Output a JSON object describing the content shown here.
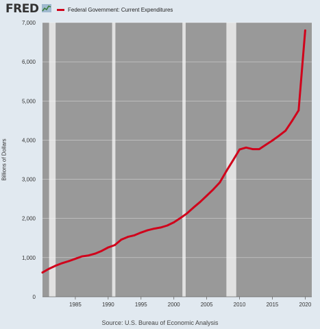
{
  "header": {
    "logo_text": "FRED",
    "logo_icon": "chart-line-icon"
  },
  "colors": {
    "page_bg": "#e1e9f0",
    "plot_bg": "#e1e1e1",
    "recession": "#999999",
    "line": "#d0021b",
    "grid": "#ffffff"
  },
  "footer": {
    "source": "Source: U.S. Bureau of Economic Analysis"
  },
  "chart_data": {
    "type": "line",
    "title": "",
    "xlabel": "",
    "ylabel": "Billions of Dollars",
    "xlim": [
      1980,
      2021
    ],
    "ylim": [
      0,
      7000
    ],
    "x_ticks": [
      1985,
      1990,
      1995,
      2000,
      2005,
      2010,
      2015,
      2020
    ],
    "x_tick_labels": [
      "1985",
      "1990",
      "1995",
      "2000",
      "2005",
      "2010",
      "2015",
      "2020"
    ],
    "y_ticks": [
      0,
      1000,
      2000,
      3000,
      4000,
      5000,
      6000,
      7000
    ],
    "y_tick_labels": [
      "0",
      "1,000",
      "2,000",
      "3,000",
      "4,000",
      "5,000",
      "6,000",
      "7,000"
    ],
    "grid": true,
    "legend_position": "top-left",
    "shaded_bands": [
      [
        1980,
        1981
      ],
      [
        1982,
        1990.6
      ],
      [
        1991.1,
        2001.3
      ],
      [
        2001.8,
        2008
      ],
      [
        2009.5,
        2021
      ]
    ],
    "series": [
      {
        "name": "Federal Government: Current Expenditures",
        "x": [
          1980,
          1981,
          1982,
          1983,
          1984,
          1985,
          1986,
          1987,
          1988,
          1989,
          1990,
          1991,
          1992,
          1993,
          1994,
          1995,
          1996,
          1997,
          1998,
          1999,
          2000,
          2001,
          2002,
          2003,
          2004,
          2005,
          2006,
          2007,
          2008,
          2009,
          2010,
          2011,
          2012,
          2013,
          2014,
          2015,
          2016,
          2017,
          2018,
          2019,
          2020
        ],
        "y": [
          620,
          715,
          795,
          860,
          910,
          970,
          1030,
          1055,
          1100,
          1170,
          1260,
          1320,
          1460,
          1530,
          1570,
          1640,
          1700,
          1740,
          1770,
          1820,
          1900,
          2010,
          2130,
          2280,
          2420,
          2580,
          2740,
          2920,
          3210,
          3480,
          3760,
          3810,
          3770,
          3770,
          3880,
          3990,
          4110,
          4240,
          4490,
          4760,
          6800
        ]
      }
    ]
  }
}
